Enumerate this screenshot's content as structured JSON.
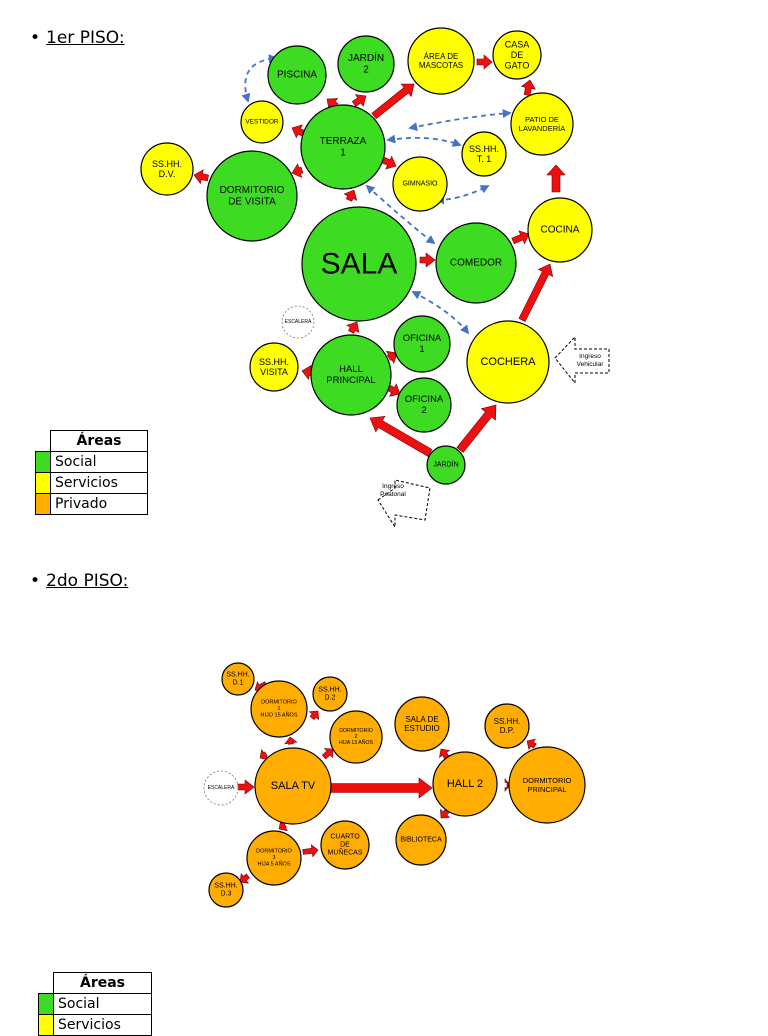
{
  "heading_1": "1er PISO:",
  "heading_2": "2do PISO:",
  "bullet": "•",
  "colors": {
    "social": "#3ddc23",
    "servicios": "#ffff00",
    "privado": "#ffad00",
    "outline": "#000000",
    "arrow": "#ee1010",
    "dashed": "#4472c4"
  },
  "legend": {
    "title": "Áreas",
    "items": [
      {
        "label": "Social",
        "color": "#3ddc23"
      },
      {
        "label": "Servicios",
        "color": "#ffff00"
      },
      {
        "label": "Privado",
        "color": "#ffad00"
      }
    ]
  },
  "floor1_nodes": [
    {
      "id": "piscina",
      "lines": [
        "PISCINA"
      ],
      "cat": "social"
    },
    {
      "id": "jardin2",
      "lines": [
        "JARDÍN",
        "2"
      ],
      "cat": "social"
    },
    {
      "id": "mascotas",
      "lines": [
        "ÁREA DE",
        "MASCOTAS"
      ],
      "cat": "servicios"
    },
    {
      "id": "gato",
      "lines": [
        "CASA",
        "DE",
        "GATO"
      ],
      "cat": "servicios"
    },
    {
      "id": "vestidor",
      "lines": [
        "VESTIDOR"
      ],
      "cat": "servicios"
    },
    {
      "id": "terraza",
      "lines": [
        "TERRAZA",
        "1"
      ],
      "cat": "social"
    },
    {
      "id": "lavanderia",
      "lines": [
        "PATIO DE",
        "LAVANDERÍA"
      ],
      "cat": "servicios"
    },
    {
      "id": "sshh_dv",
      "lines": [
        "SS.HH.",
        "D.V."
      ],
      "cat": "servicios"
    },
    {
      "id": "dorm_visita",
      "lines": [
        "DORMITORIO",
        "DE VISITA"
      ],
      "cat": "social"
    },
    {
      "id": "sshh_t1",
      "lines": [
        "SS.HH.",
        "T. 1"
      ],
      "cat": "servicios"
    },
    {
      "id": "gimnasio",
      "lines": [
        "GIMNASIO"
      ],
      "cat": "servicios"
    },
    {
      "id": "sala",
      "lines": [
        "SALA"
      ],
      "cat": "social"
    },
    {
      "id": "comedor",
      "lines": [
        "COMEDOR"
      ],
      "cat": "social"
    },
    {
      "id": "cocina",
      "lines": [
        "COCINA"
      ],
      "cat": "servicios"
    },
    {
      "id": "oficina1",
      "lines": [
        "OFICINA",
        "1"
      ],
      "cat": "social"
    },
    {
      "id": "cochera",
      "lines": [
        "COCHERA"
      ],
      "cat": "servicios"
    },
    {
      "id": "sshh_visita",
      "lines": [
        "SS.HH.",
        "VISITA"
      ],
      "cat": "servicios"
    },
    {
      "id": "hall",
      "lines": [
        "HALL",
        "PRINCIPAL"
      ],
      "cat": "social"
    },
    {
      "id": "oficina2",
      "lines": [
        "OFICINA",
        "2"
      ],
      "cat": "social"
    },
    {
      "id": "jardin1",
      "lines": [
        "JARDÍN"
      ],
      "cat": "social"
    },
    {
      "id": "escalera1",
      "lines": [
        "ESCALERA"
      ],
      "cat": "stair"
    }
  ],
  "floor1_entries": {
    "vehicular": [
      "Ingreso",
      "Vehicular"
    ],
    "peatonal": [
      "Ingreso",
      "Peatonal"
    ]
  },
  "floor2_nodes": [
    {
      "id": "sshh_d1",
      "lines": [
        "SS.HH.",
        "D.1"
      ],
      "cat": "privado"
    },
    {
      "id": "dorm1",
      "lines": [
        "DORMITORIO",
        "1",
        "HIJO 15 AÑOS"
      ],
      "cat": "privado"
    },
    {
      "id": "sshh_d2",
      "lines": [
        "SS.HH.",
        "D.2"
      ],
      "cat": "privado"
    },
    {
      "id": "dorm2",
      "lines": [
        "DORMITORIO",
        "2",
        "HIJA 13 AÑOS"
      ],
      "cat": "privado"
    },
    {
      "id": "sala_estudio",
      "lines": [
        "SALA DE",
        "ESTUDIO"
      ],
      "cat": "privado"
    },
    {
      "id": "sshh_dp",
      "lines": [
        "SS.HH.",
        "D.P."
      ],
      "cat": "privado"
    },
    {
      "id": "escalera2",
      "lines": [
        "ESCALERA"
      ],
      "cat": "stair"
    },
    {
      "id": "sala_tv",
      "lines": [
        "SALA TV"
      ],
      "cat": "privado"
    },
    {
      "id": "hall2",
      "lines": [
        "HALL 2"
      ],
      "cat": "privado"
    },
    {
      "id": "dorm_principal",
      "lines": [
        "DORMITORIO",
        "PRINCIPAL"
      ],
      "cat": "privado"
    },
    {
      "id": "dorm3",
      "lines": [
        "DORMITORIO",
        "3",
        "HIJA 5 AÑOS"
      ],
      "cat": "privado"
    },
    {
      "id": "munecas",
      "lines": [
        "CUARTO",
        "DE",
        "MUÑECAS"
      ],
      "cat": "privado"
    },
    {
      "id": "biblioteca",
      "lines": [
        "BIBLIOTECA"
      ],
      "cat": "privado"
    },
    {
      "id": "sshh_d3",
      "lines": [
        "SS.HH.",
        "D.3"
      ],
      "cat": "privado"
    }
  ]
}
